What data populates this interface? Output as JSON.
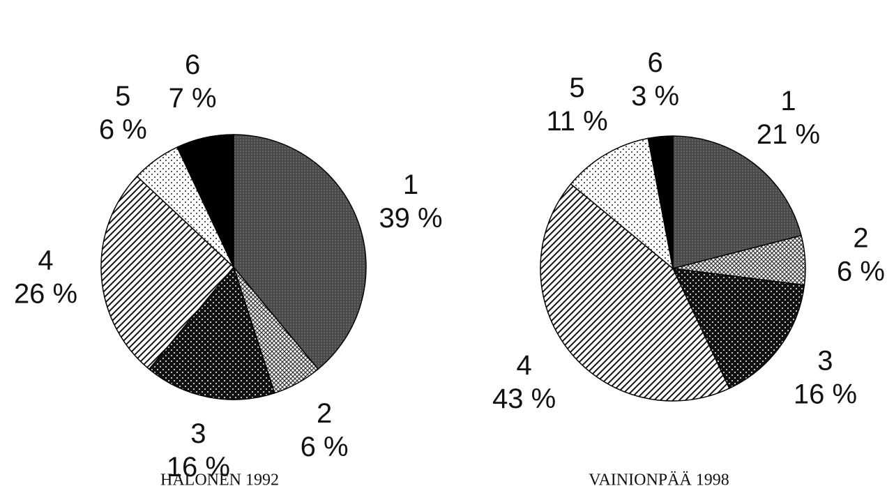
{
  "chart_data": [
    {
      "type": "pie",
      "title": "HALONEN 1992",
      "categories": [
        "1",
        "2",
        "3",
        "4",
        "5",
        "6"
      ],
      "values": [
        39,
        6,
        16,
        26,
        6,
        7
      ],
      "value_labels": [
        "39 %",
        "6 %",
        "16 %",
        "26 %",
        "6 %",
        "7 %"
      ]
    },
    {
      "type": "pie",
      "title": "VAINIONPÄÄ 1998",
      "categories": [
        "1",
        "2",
        "3",
        "4",
        "5",
        "6"
      ],
      "values": [
        21,
        6,
        16,
        43,
        11,
        3
      ],
      "value_labels": [
        "21 %",
        "6 %",
        "16 %",
        "43 %",
        "11 %",
        "3 %"
      ]
    }
  ]
}
